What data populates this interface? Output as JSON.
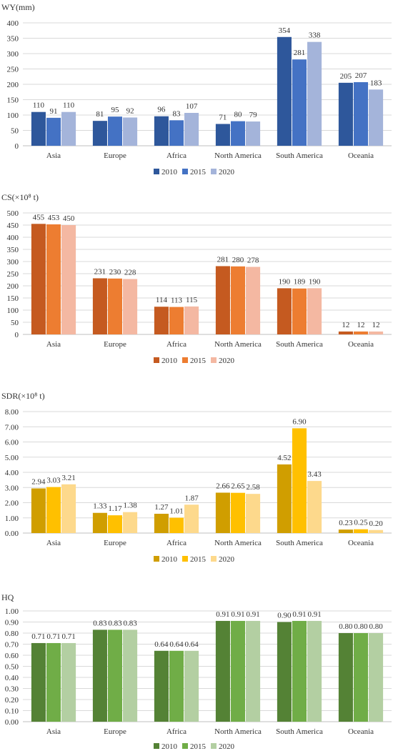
{
  "chart_data": [
    {
      "type": "bar",
      "ylabel": "WY(mm)",
      "categories": [
        "Asia",
        "Europe",
        "Africa",
        "North America",
        "South America",
        "Oceania"
      ],
      "series": [
        {
          "name": "2010",
          "color": "#2e579b",
          "values": [
            110,
            81,
            96,
            71,
            354,
            205
          ]
        },
        {
          "name": "2015",
          "color": "#4472c4",
          "values": [
            91,
            95,
            83,
            80,
            281,
            207
          ]
        },
        {
          "name": "2020",
          "color": "#a4b4da",
          "values": [
            110,
            92,
            107,
            79,
            338,
            183
          ]
        }
      ],
      "ylim": [
        0,
        400
      ],
      "yticks": [
        "0",
        "50",
        "100",
        "150",
        "200",
        "250",
        "300",
        "350",
        "400"
      ],
      "grid": true,
      "legend": "bottom",
      "value_decimals": 0
    },
    {
      "type": "bar",
      "ylabel": "CS(×10⁸ t)",
      "categories": [
        "Asia",
        "Europe",
        "Africa",
        "North America",
        "South America",
        "Oceania"
      ],
      "series": [
        {
          "name": "2010",
          "color": "#c55a20",
          "values": [
            455,
            231,
            114,
            281,
            190,
            12
          ]
        },
        {
          "name": "2015",
          "color": "#ed7d31",
          "values": [
            453,
            230,
            113,
            280,
            189,
            12
          ]
        },
        {
          "name": "2020",
          "color": "#f4b8a2",
          "values": [
            450,
            228,
            115,
            278,
            190,
            12
          ]
        }
      ],
      "ylim": [
        0,
        500
      ],
      "yticks": [
        "0",
        "50",
        "100",
        "150",
        "200",
        "250",
        "300",
        "350",
        "400",
        "450",
        "500"
      ],
      "grid": true,
      "legend": "bottom",
      "value_decimals": 0
    },
    {
      "type": "bar",
      "ylabel": "SDR(×10⁸ t)",
      "categories": [
        "Asia",
        "Europe",
        "Africa",
        "North America",
        "South America",
        "Oceania"
      ],
      "series": [
        {
          "name": "2010",
          "color": "#d09e00",
          "values": [
            2.94,
            1.33,
            1.27,
            2.66,
            4.52,
            0.23
          ]
        },
        {
          "name": "2015",
          "color": "#ffc000",
          "values": [
            3.03,
            1.17,
            1.01,
            2.65,
            6.9,
            0.25
          ]
        },
        {
          "name": "2020",
          "color": "#fdd98c",
          "values": [
            3.21,
            1.38,
            1.87,
            2.58,
            3.43,
            0.2
          ]
        }
      ],
      "ylim": [
        0,
        8
      ],
      "yticks": [
        "0.00",
        "1.00",
        "2.00",
        "3.00",
        "4.00",
        "5.00",
        "6.00",
        "7.00",
        "8.00"
      ],
      "grid": true,
      "legend": "bottom",
      "value_decimals": 2
    },
    {
      "type": "bar",
      "ylabel": "HQ",
      "categories": [
        "Asia",
        "Europe",
        "Africa",
        "North America",
        "South America",
        "Oceania"
      ],
      "series": [
        {
          "name": "2010",
          "color": "#548235",
          "values": [
            0.71,
            0.83,
            0.64,
            0.91,
            0.9,
            0.8
          ]
        },
        {
          "name": "2015",
          "color": "#70ad47",
          "values": [
            0.71,
            0.83,
            0.64,
            0.91,
            0.91,
            0.8
          ]
        },
        {
          "name": "2020",
          "color": "#b3cfa2",
          "values": [
            0.71,
            0.83,
            0.64,
            0.91,
            0.91,
            0.8
          ]
        }
      ],
      "ylim": [
        0,
        1
      ],
      "yticks": [
        "0.00",
        "0.10",
        "0.20",
        "0.30",
        "0.40",
        "0.50",
        "0.60",
        "0.70",
        "0.80",
        "0.90",
        "1.00"
      ],
      "grid": true,
      "legend": "bottom",
      "value_decimals": 2
    }
  ]
}
